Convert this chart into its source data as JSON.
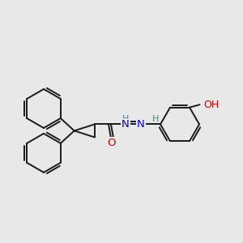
{
  "bg_color": "#e8e8e8",
  "bond_color": "#1a1a1a",
  "bond_lw": 1.4,
  "atom_colors": {
    "C": "#1a1a1a",
    "N": "#0000cc",
    "O": "#cc0000",
    "H": "#3a8a8a"
  },
  "figsize": [
    3.0,
    3.0
  ],
  "dpi": 100
}
